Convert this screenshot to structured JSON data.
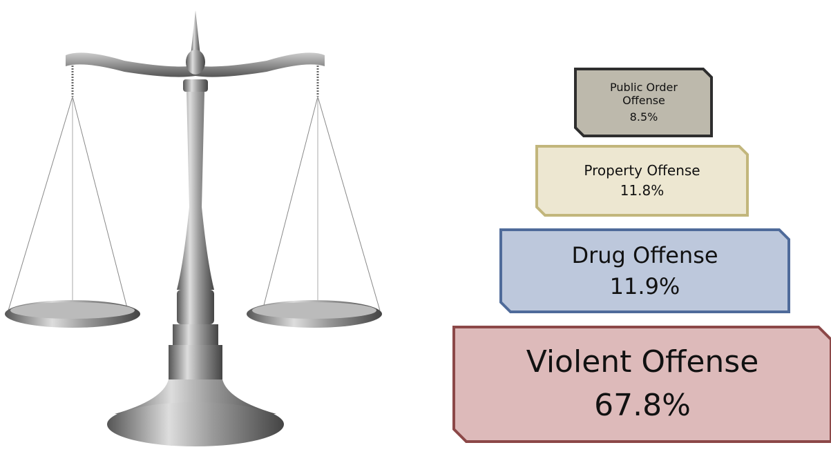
{
  "nodes": [
    {
      "label": "Public Order Offense",
      "value": "8.5%"
    },
    {
      "label": "Property Offense",
      "value": "11.8%"
    },
    {
      "label": "Drug Offense",
      "value": "11.9%"
    },
    {
      "label": "Violent Offense",
      "value": "67.8%"
    }
  ]
}
